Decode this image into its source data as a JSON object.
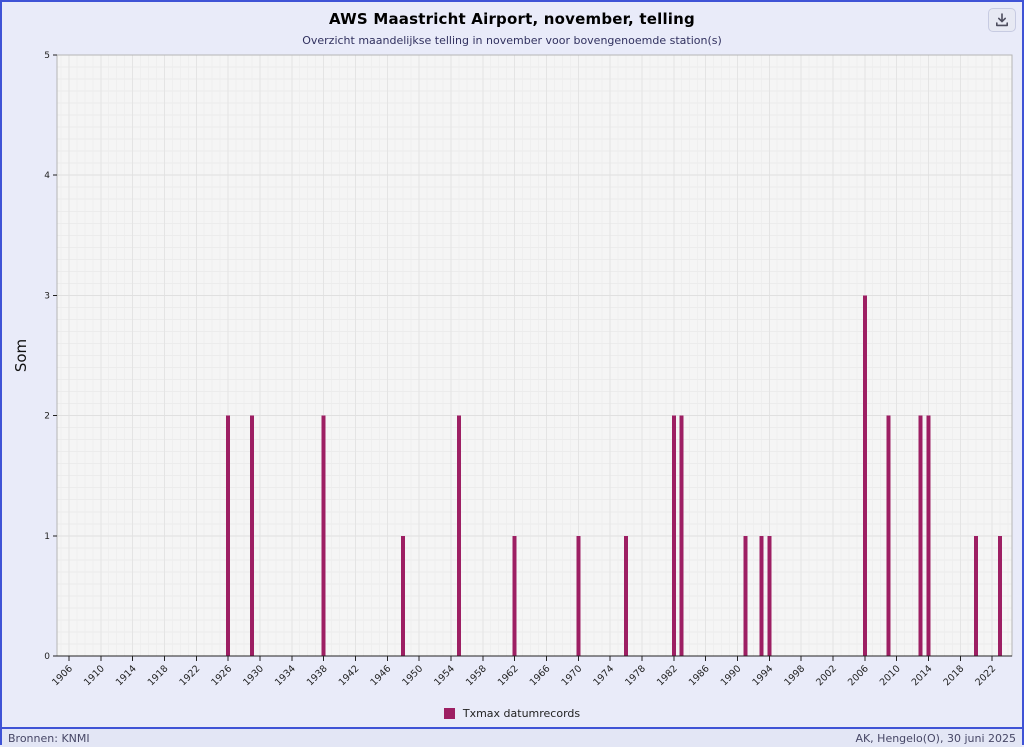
{
  "header": {
    "title": "AWS Maastricht Airport, november, telling",
    "subtitle": "Overzicht maandelijkse telling in november voor bovengenoemde station(s)",
    "download_icon": "download-icon"
  },
  "legend": {
    "label": "Txmax datumrecords",
    "color": "#9d1f63"
  },
  "footer": {
    "source": "Bronnen: KNMI",
    "credit": "AK, Hengelo(O), 30 juni 2025"
  },
  "colors": {
    "frame": "#3f53d6",
    "plot_bg": "#f5f5f5",
    "grid_minor_h": "#ececec",
    "grid_major_h": "#e0e0e0",
    "grid_minor_v": "#efefef",
    "grid_major_v": "#e4e4e4",
    "axis": "#222222",
    "plot_border": "#b5b5b5",
    "bar": "#9d1f63"
  },
  "chart_data": {
    "type": "bar",
    "title": "AWS Maastricht Airport, november, telling",
    "subtitle": "Overzicht maandelijkse telling in november voor bovengenoemde station(s)",
    "xlabel": "",
    "ylabel": "Som",
    "ylim": [
      0,
      5
    ],
    "y_ticks": [
      0,
      1,
      2,
      3,
      4,
      5
    ],
    "x_domain": [
      1904.5,
      2024.5
    ],
    "x_ticks": [
      1906,
      1910,
      1914,
      1918,
      1922,
      1926,
      1930,
      1934,
      1938,
      1942,
      1946,
      1950,
      1954,
      1958,
      1962,
      1966,
      1970,
      1974,
      1978,
      1982,
      1986,
      1990,
      1994,
      1998,
      2002,
      2006,
      2010,
      2014,
      2018,
      2022
    ],
    "minor_grid": {
      "x_step": 1,
      "y_step": 0.1
    },
    "grid": true,
    "legend_position": "bottom-center",
    "series": [
      {
        "name": "Txmax datumrecords",
        "color": "#9d1f63",
        "points": [
          [
            1926,
            2
          ],
          [
            1929,
            2
          ],
          [
            1938,
            2
          ],
          [
            1948,
            1
          ],
          [
            1955,
            2
          ],
          [
            1962,
            1
          ],
          [
            1970,
            1
          ],
          [
            1976,
            1
          ],
          [
            1982,
            2
          ],
          [
            1983,
            2
          ],
          [
            1991,
            1
          ],
          [
            1993,
            1
          ],
          [
            1994,
            1
          ],
          [
            2006,
            3
          ],
          [
            2009,
            2
          ],
          [
            2013,
            2
          ],
          [
            2014,
            2
          ],
          [
            2020,
            1
          ],
          [
            2023,
            1
          ]
        ]
      }
    ]
  }
}
